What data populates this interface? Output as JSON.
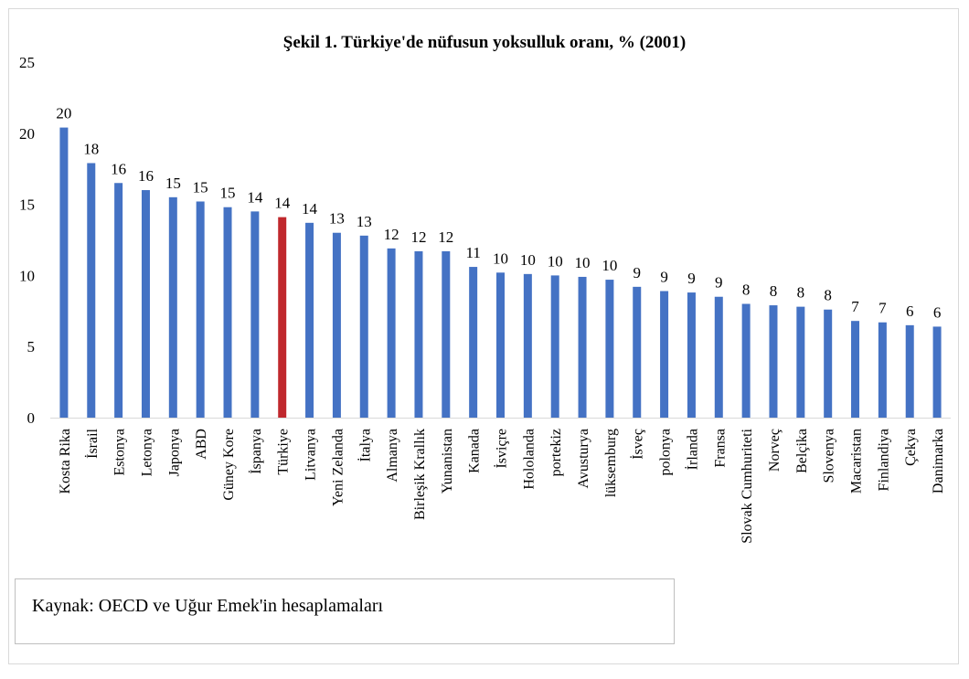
{
  "chart_data": {
    "type": "bar",
    "title": "Şekil 1. Türkiye'de nüfusun yoksulluk oranı, % (2001)",
    "xlabel": "",
    "ylabel": "",
    "ylim": [
      0,
      25
    ],
    "yticks": [
      0,
      5,
      10,
      15,
      20,
      25
    ],
    "categories": [
      "Kosta Rika",
      "İsrail",
      "Estonya",
      "Letonya",
      "Japonya",
      "ABD",
      "Güney Kore",
      "İspanya",
      "Türkiye",
      "Litvanya",
      "Yeni Zelanda",
      "İtalya",
      "Almanya",
      "Birleşik Krallık",
      "Yunanistan",
      "Kanada",
      "İsviçre",
      "Hololanda",
      "portekiz",
      "Avusturya",
      "lüksemburg",
      "İsveç",
      "polonya",
      "İrlanda",
      "Fransa",
      "Slovak Cumhuriteti",
      "Norveç",
      "Belçika",
      "Slovenya",
      "Macaristan",
      "Finlandiya",
      "Çekya",
      "Danimarka"
    ],
    "values": [
      20.4,
      17.9,
      16.5,
      16.0,
      15.5,
      15.2,
      14.8,
      14.5,
      14.1,
      13.7,
      13.0,
      12.8,
      11.9,
      11.7,
      11.7,
      10.6,
      10.2,
      10.1,
      10.0,
      9.9,
      9.7,
      9.2,
      8.9,
      8.8,
      8.5,
      8.0,
      7.9,
      7.8,
      7.6,
      6.8,
      6.7,
      6.5,
      6.4
    ],
    "data_labels": [
      "20",
      "18",
      "16",
      "16",
      "15",
      "15",
      "15",
      "14",
      "14",
      "14",
      "13",
      "13",
      "12",
      "12",
      "12",
      "11",
      "10",
      "10",
      "10",
      "10",
      "10",
      "9",
      "9",
      "9",
      "9",
      "8",
      "8",
      "8",
      "8",
      "7",
      "7",
      "6",
      "6"
    ],
    "highlight_category": "Türkiye",
    "colors": {
      "bar": "#4472c4",
      "highlight": "#c0282d",
      "text": "#000000",
      "frame": "#d9d9d9"
    },
    "legend": "none",
    "grid": false
  },
  "source": "Kaynak: OECD ve Uğur Emek'in hesaplamaları"
}
